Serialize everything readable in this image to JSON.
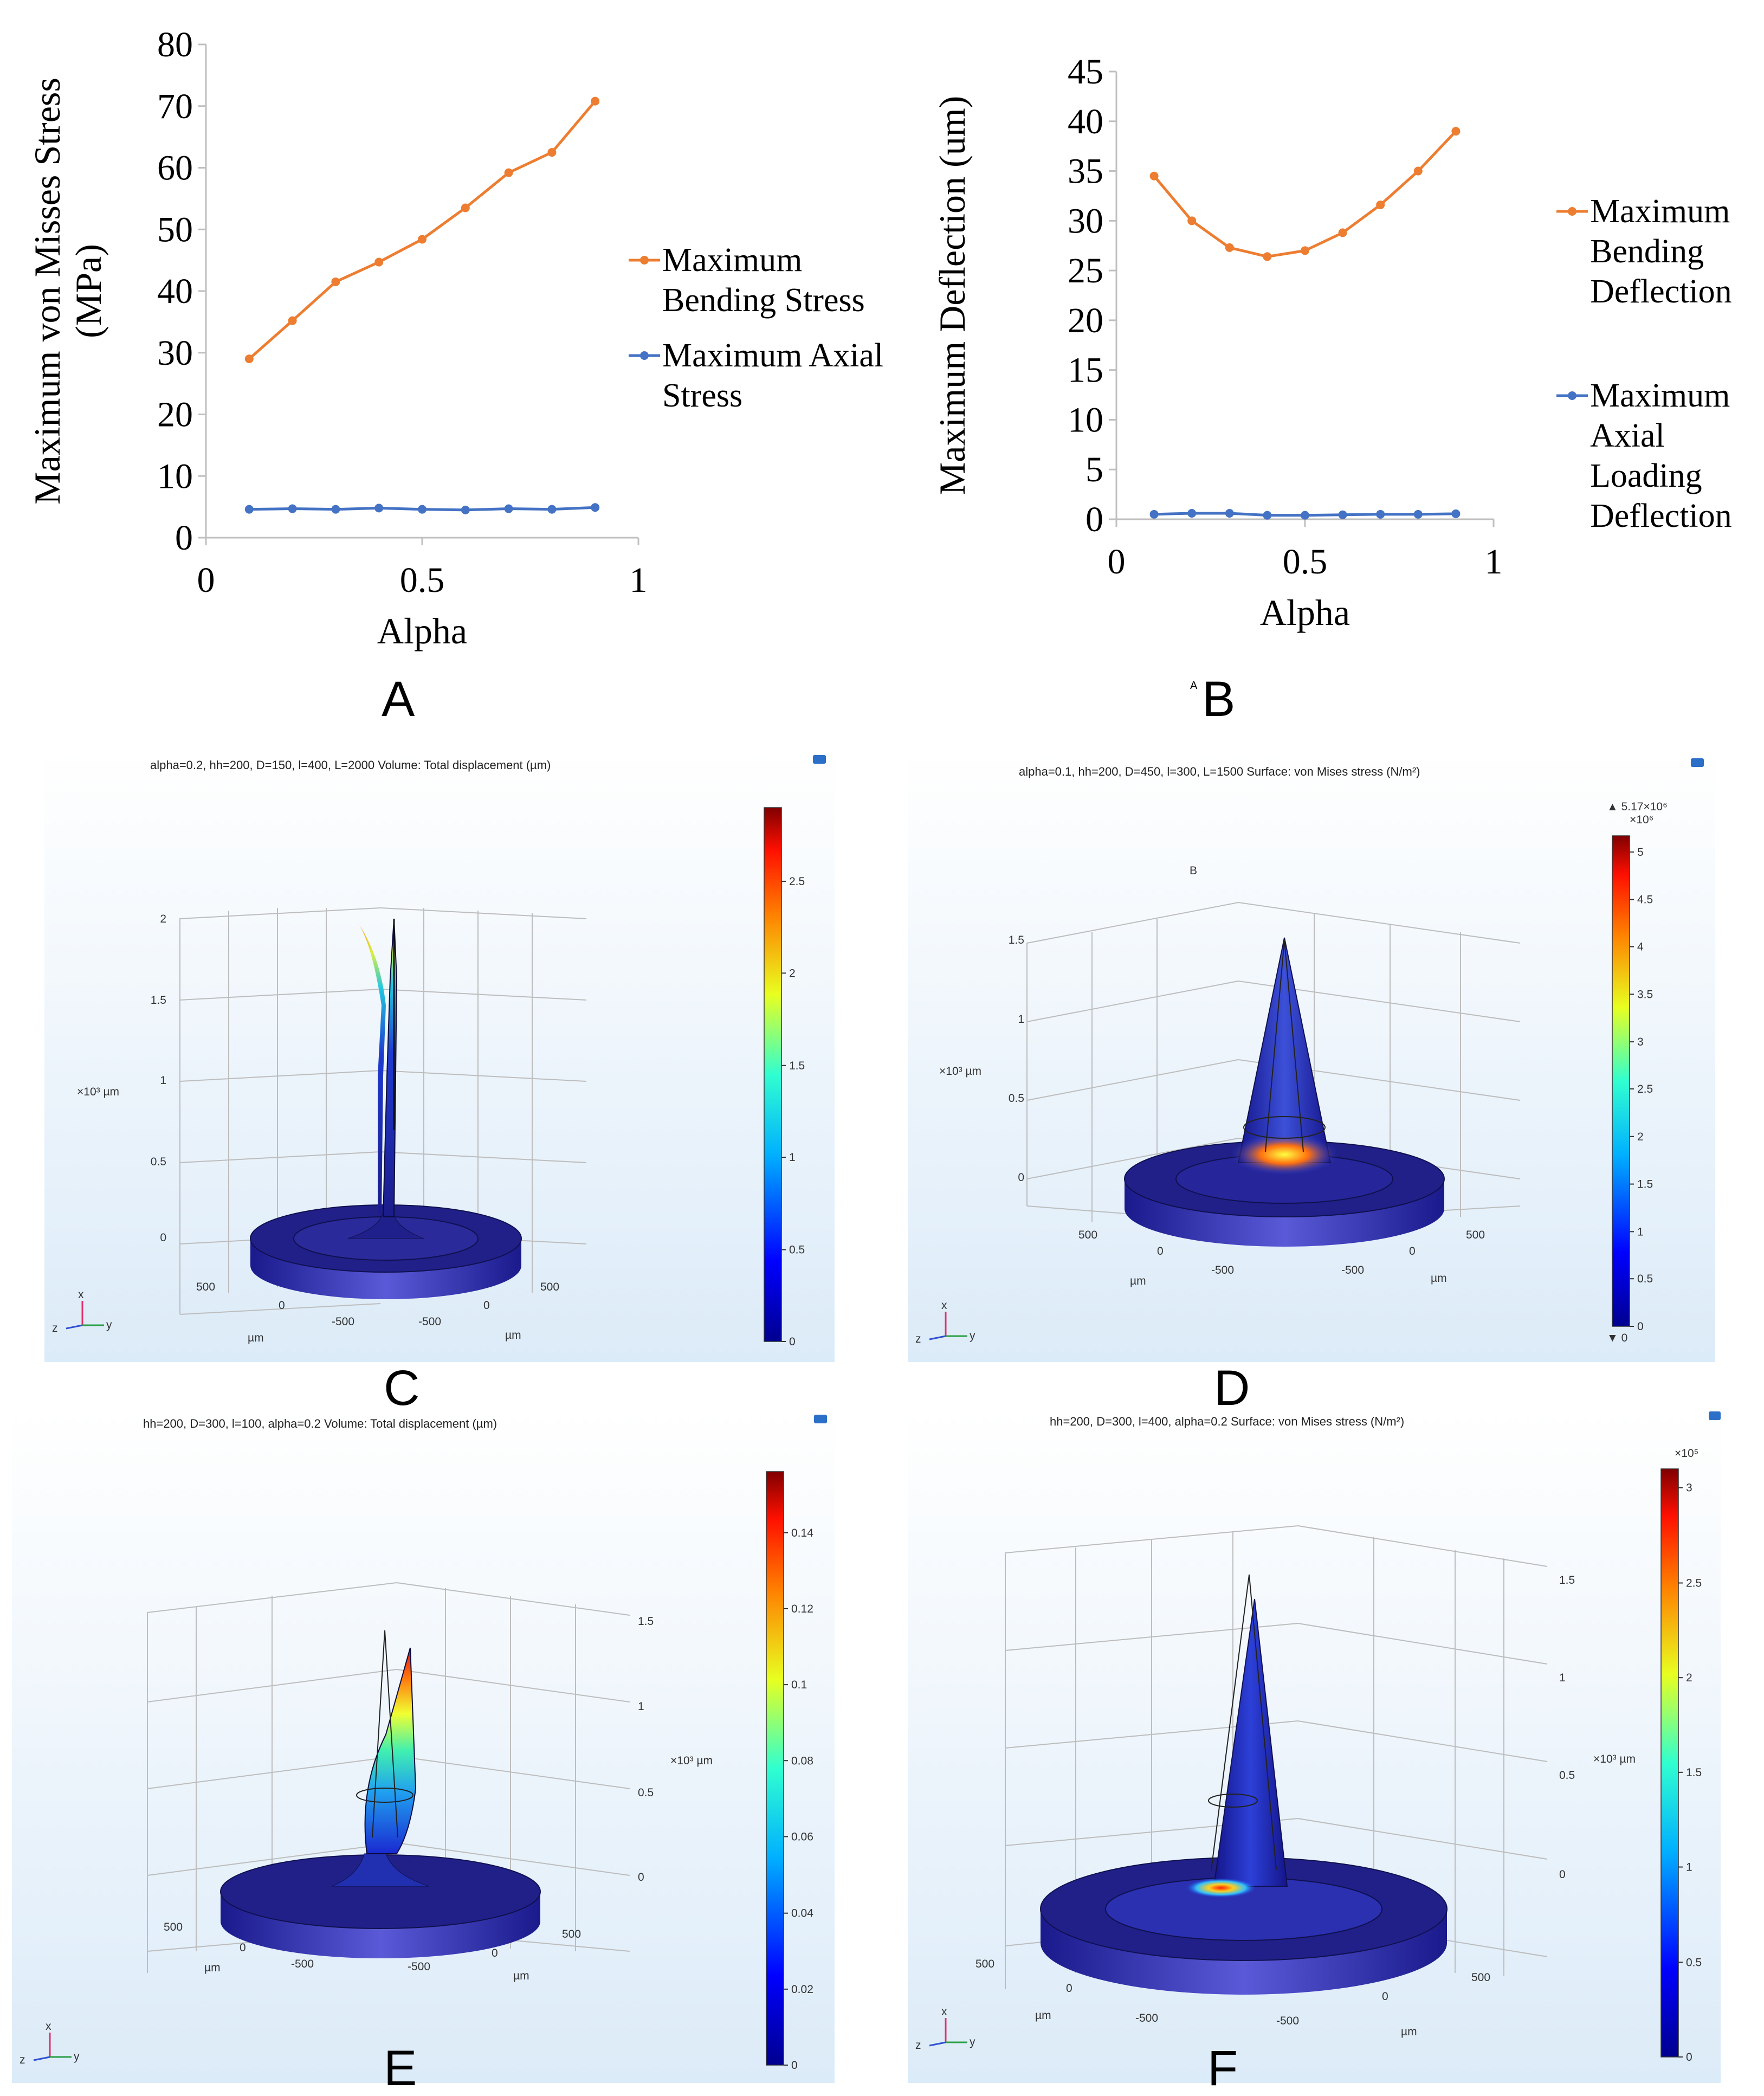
{
  "panels": {
    "A": "A",
    "B": "B",
    "C": "C",
    "D": "D",
    "E": "E",
    "F": "F",
    "B_small": "A"
  },
  "chart_data": [
    {
      "type": "line",
      "xlabel": "Alpha",
      "ylabel": "Maximum von Misses Stress (MPa)",
      "ylabel_lines": [
        "Maximum von Misses Stress",
        "(MPa)"
      ],
      "xlim": [
        0,
        1
      ],
      "ylim": [
        0,
        80
      ],
      "xticks": [
        "0",
        "0.5",
        "1"
      ],
      "yticks": [
        "0",
        "10",
        "20",
        "30",
        "40",
        "50",
        "60",
        "70",
        "80"
      ],
      "legend_position": "right",
      "x": [
        0.1,
        0.2,
        0.3,
        0.4,
        0.5,
        0.6,
        0.7,
        0.8,
        0.9
      ],
      "series": [
        {
          "name": "Maximum Bending Stress",
          "name_lines": [
            "Maximum",
            "Bending Stress"
          ],
          "color": "#ED7D31",
          "values": [
            29,
            35.2,
            41.5,
            44.7,
            48.4,
            53.5,
            59.2,
            62.5,
            70.8
          ]
        },
        {
          "name": "Maximum Axial Stress",
          "name_lines": [
            "Maximum Axial",
            "Stress"
          ],
          "color": "#4472C4",
          "values": [
            4.6,
            4.7,
            4.6,
            4.8,
            4.6,
            4.5,
            4.7,
            4.6,
            4.9
          ]
        }
      ]
    },
    {
      "type": "line",
      "xlabel": "Alpha",
      "ylabel": "Maximum Deflection (um)",
      "ylabel_lines": [
        "Maximum Deflection (um)"
      ],
      "xlim": [
        0,
        1
      ],
      "ylim": [
        0,
        45
      ],
      "xticks": [
        "0",
        "0.5",
        "1"
      ],
      "yticks": [
        "0",
        "5",
        "10",
        "15",
        "20",
        "25",
        "30",
        "35",
        "40",
        "45"
      ],
      "legend_position": "right",
      "x": [
        0.1,
        0.2,
        0.3,
        0.4,
        0.5,
        0.6,
        0.7,
        0.8,
        0.9
      ],
      "series": [
        {
          "name": "Maximum Bending Deflection",
          "name_lines": [
            "Maximum",
            "Bending",
            "Deflection"
          ],
          "color": "#ED7D31",
          "values": [
            34.5,
            30,
            27.3,
            26.4,
            27,
            28.8,
            31.6,
            35,
            39
          ]
        },
        {
          "name": "Maximum Axial Loading Deflection",
          "name_lines": [
            "Maximum",
            "Axial",
            "Loading",
            "Deflection"
          ],
          "color": "#4472C4",
          "values": [
            0.5,
            0.6,
            0.6,
            0.4,
            0.4,
            0.45,
            0.5,
            0.5,
            0.55
          ]
        }
      ]
    }
  ],
  "simulations": {
    "C": {
      "title": "alpha=0.2, hh=200, D=150, l=400, L=2000   Volume: Total displacement (µm)",
      "colorbar_ticks": [
        "2.5",
        "2",
        "1.5",
        "1",
        "0.5",
        "0"
      ],
      "colorbar_fracs": [
        0.862,
        0.69,
        0.517,
        0.345,
        0.172,
        0
      ],
      "z_ticks": [
        "2",
        "1.5",
        "1",
        "0.5",
        "0"
      ],
      "unit_label": "×10³ µm",
      "ground_ticks": [
        "500",
        "0",
        "-500",
        "-500",
        "0",
        "500"
      ],
      "axis_unit": "µm",
      "triad": [
        "z",
        "x",
        "y"
      ]
    },
    "D": {
      "title": "alpha=0.1, hh=200, D=450, l=300, L=1500   Surface: von Mises stress (N/m²)",
      "max_label": "▲ 5.17×10⁶",
      "min_label": "▼ 0",
      "exponent": "×10⁶",
      "inner_label": "B",
      "colorbar_ticks": [
        "5",
        "4.5",
        "4",
        "3.5",
        "3",
        "2.5",
        "2",
        "1.5",
        "1",
        "0.5",
        "0"
      ],
      "colorbar_fracs": [
        0.967,
        0.87,
        0.774,
        0.677,
        0.58,
        0.484,
        0.387,
        0.29,
        0.193,
        0.097,
        0
      ],
      "z_ticks": [
        "1.5",
        "1",
        "0.5",
        "0"
      ],
      "unit_label": "×10³ µm",
      "ground_ticks": [
        "500",
        "0",
        "-500",
        "-500",
        "0",
        "500"
      ],
      "axis_unit": "µm",
      "triad": [
        "z",
        "x",
        "y"
      ]
    },
    "E": {
      "title": "hh=200, D=300, l=100, alpha=0.2   Volume: Total displacement (µm)",
      "colorbar_ticks": [
        "0.14",
        "0.12",
        "0.1",
        "0.08",
        "0.06",
        "0.04",
        "0.02",
        "0"
      ],
      "colorbar_fracs": [
        0.897,
        0.769,
        0.641,
        0.513,
        0.385,
        0.256,
        0.128,
        0
      ],
      "z_ticks": [
        "1.5",
        "1",
        "0.5",
        "0"
      ],
      "unit_label": "×10³ µm",
      "ground_ticks": [
        "500",
        "0",
        "-500",
        "-500",
        "0",
        "500"
      ],
      "axis_unit": "µm",
      "triad": [
        "z",
        "x",
        "y"
      ]
    },
    "F": {
      "title": "hh=200, D=300, l=400, alpha=0.2   Surface: von Mises stress (N/m²)",
      "exponent": "×10⁵",
      "colorbar_ticks": [
        "3",
        "2.5",
        "2",
        "1.5",
        "1",
        "0.5",
        "0"
      ],
      "colorbar_fracs": [
        0.968,
        0.806,
        0.645,
        0.484,
        0.323,
        0.161,
        0
      ],
      "z_ticks": [
        "1.5",
        "1",
        "0.5",
        "0"
      ],
      "unit_label": "×10³ µm",
      "ground_ticks": [
        "500",
        "0",
        "-500",
        "-500",
        "0",
        "500"
      ],
      "axis_unit": "µm",
      "triad": [
        "z",
        "x",
        "y"
      ]
    }
  }
}
